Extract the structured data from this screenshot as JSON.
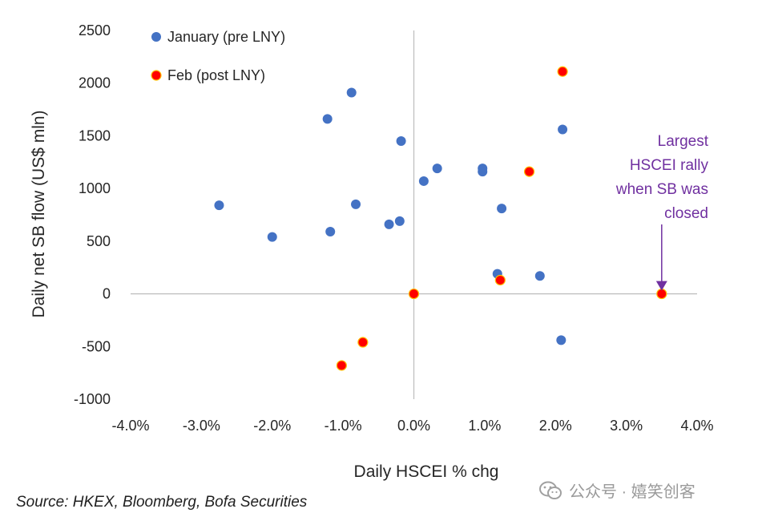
{
  "chart_data": {
    "type": "scatter",
    "xlabel": "Daily HSCEI % chg",
    "ylabel": "Daily net SB flow (US$ mln)",
    "xlim": [
      -4.0,
      4.0
    ],
    "ylim": [
      -1000,
      2500
    ],
    "x_ticks": [
      "-4.0%",
      "-3.0%",
      "-2.0%",
      "-1.0%",
      "0.0%",
      "1.0%",
      "2.0%",
      "3.0%",
      "4.0%"
    ],
    "y_ticks": [
      "2500",
      "2000",
      "1500",
      "1000",
      "500",
      "0",
      "-500",
      "-1000"
    ],
    "grid": false,
    "legend_position": "top-left",
    "series": [
      {
        "name": "January (pre LNY)",
        "color": "#4472c4",
        "points": [
          {
            "x": -2.75,
            "y": 840
          },
          {
            "x": -2.0,
            "y": 540
          },
          {
            "x": -1.22,
            "y": 1660
          },
          {
            "x": -1.18,
            "y": 590
          },
          {
            "x": -0.88,
            "y": 1910
          },
          {
            "x": -0.82,
            "y": 850
          },
          {
            "x": -0.35,
            "y": 660
          },
          {
            "x": -0.2,
            "y": 690
          },
          {
            "x": -0.18,
            "y": 1450
          },
          {
            "x": 0.14,
            "y": 1070
          },
          {
            "x": 0.33,
            "y": 1190
          },
          {
            "x": 0.97,
            "y": 1190
          },
          {
            "x": 0.97,
            "y": 1160
          },
          {
            "x": 1.18,
            "y": 190
          },
          {
            "x": 1.24,
            "y": 810
          },
          {
            "x": 1.78,
            "y": 170
          },
          {
            "x": 2.08,
            "y": -440
          },
          {
            "x": 2.1,
            "y": 1560
          }
        ]
      },
      {
        "name": "Feb (post LNY)",
        "color": "#ff0000",
        "points": [
          {
            "x": -1.02,
            "y": -680
          },
          {
            "x": -0.72,
            "y": -460
          },
          {
            "x": 0.0,
            "y": 0
          },
          {
            "x": 1.22,
            "y": 130
          },
          {
            "x": 1.63,
            "y": 1160
          },
          {
            "x": 2.1,
            "y": 2110
          },
          {
            "x": 3.5,
            "y": 0
          }
        ]
      }
    ],
    "annotation": {
      "lines": [
        "Largest",
        "HSCEI rally",
        "when SB was",
        "closed"
      ],
      "arrow_target": {
        "x": 3.5,
        "y": 0
      },
      "color": "#7030a0"
    }
  },
  "source_text": "Source: HKEX, Bloomberg, Bofa Securities",
  "watermark_text": "公众号 · 嬉笑创客"
}
